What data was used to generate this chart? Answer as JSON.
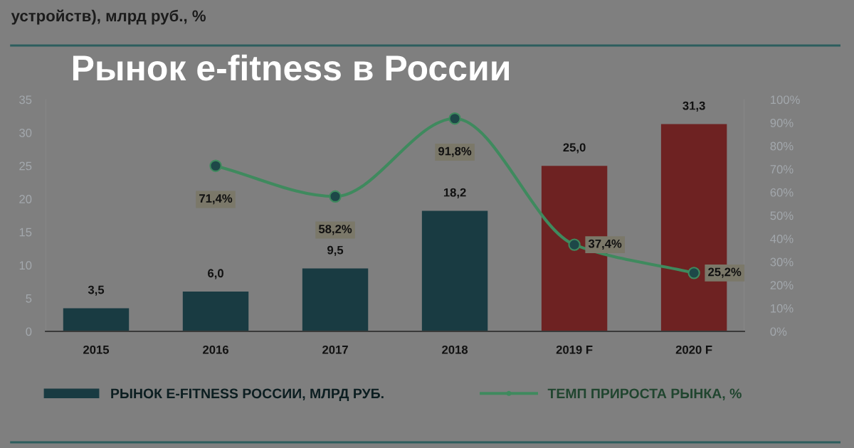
{
  "chart_data": {
    "type": "bar",
    "title": "Рынок e-fitness в России",
    "subtitle": "устройств), млрд руб., %",
    "categories": [
      "2015",
      "2016",
      "2017",
      "2018",
      "2019 F",
      "2020 F"
    ],
    "ylim": [
      0,
      35
    ],
    "yticks": [
      0,
      5,
      10,
      15,
      20,
      25,
      30,
      35
    ],
    "y2lim": [
      0,
      100
    ],
    "y2ticks": [
      {
        "value": 0,
        "label": "0%"
      },
      {
        "value": 10,
        "label": "10%"
      },
      {
        "value": 20,
        "label": "20%"
      },
      {
        "value": 30,
        "label": "30%"
      },
      {
        "value": 40,
        "label": "40%"
      },
      {
        "value": 50,
        "label": "50%"
      },
      {
        "value": 60,
        "label": "60%"
      },
      {
        "value": 70,
        "label": "70%"
      },
      {
        "value": 80,
        "label": "80%"
      },
      {
        "value": 90,
        "label": "90%"
      },
      {
        "value": 100,
        "label": "100%"
      }
    ],
    "legend": "bottom",
    "series": [
      {
        "name": "РЫНОК E-FITNESS РОССИИ, МЛРД РУБ.",
        "color": "#193b42",
        "colors": [
          "#193b42",
          "#193b42",
          "#193b42",
          "#193b42",
          "#6e2222",
          "#6e2222"
        ],
        "values": [
          3.5,
          6.0,
          9.5,
          18.2,
          25.0,
          31.3
        ],
        "value_labels": [
          "3,5",
          "6,0",
          "9,5",
          "18,2",
          "25,0",
          "31,3"
        ]
      },
      {
        "name": "ТЕМП ПРИРОСТА РЫНКА, %",
        "type": "line",
        "axis": "y2",
        "color": "#3f8a5e",
        "marker": "circle",
        "colors": [
          null,
          "#1d4848",
          "#1d4848",
          "#1d4848",
          "#1d4848",
          "#1d4848"
        ],
        "values": [
          null,
          71.4,
          58.2,
          91.8,
          37.4,
          25.2
        ],
        "value_labels": [
          null,
          "71,4%",
          "58,2%",
          "91,8%",
          "37,4%",
          "25,2%"
        ]
      }
    ]
  }
}
